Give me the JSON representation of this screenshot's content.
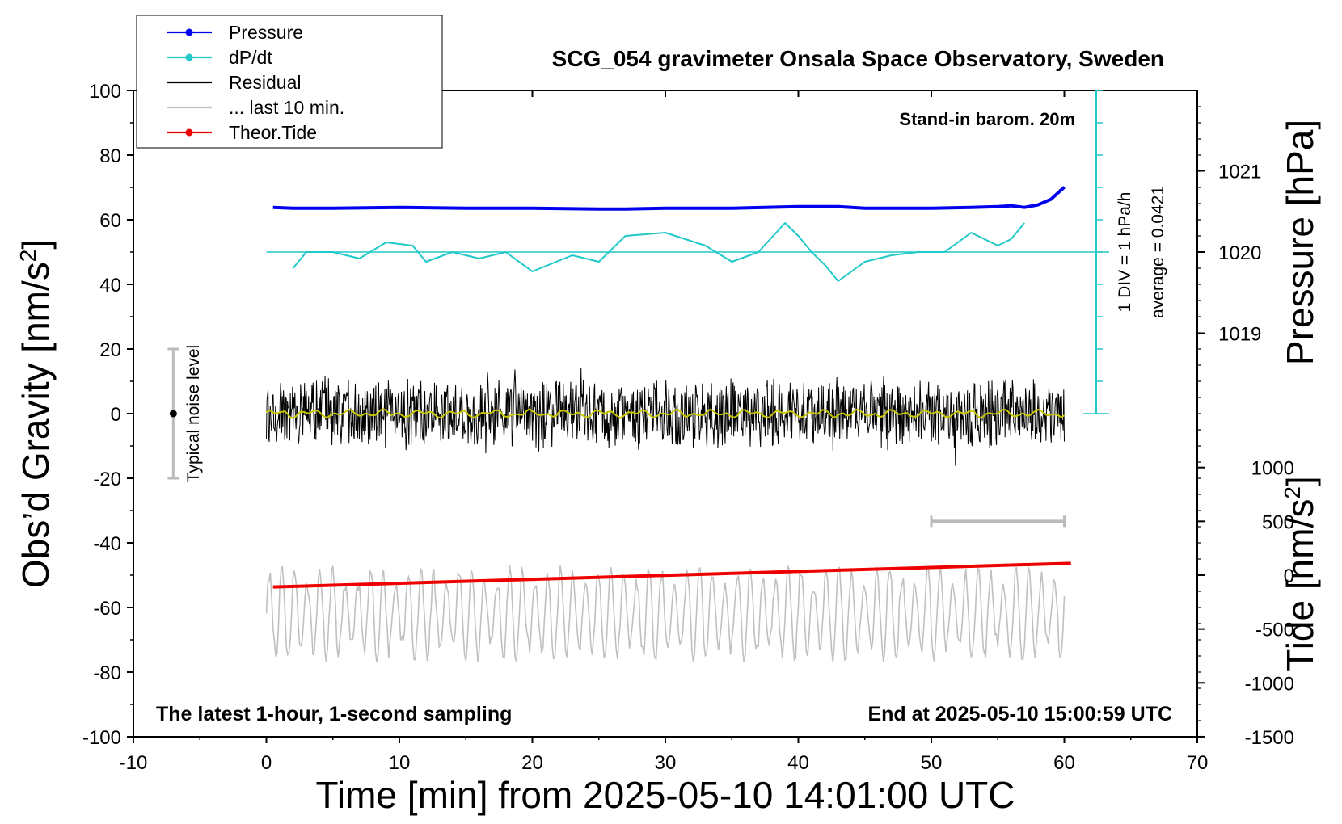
{
  "chart_data": {
    "type": "line",
    "title": "SCG_054 gravimeter Onsala Space Observatory, Sweden",
    "xlabel": "Time [min] from 2025-05-10 14:01:00 UTC",
    "xlim": [
      -10,
      70
    ],
    "xticks": [
      -10,
      0,
      10,
      20,
      30,
      40,
      50,
      60,
      70
    ],
    "ylabel_left": "Obs'd Gravity [nm/s²]",
    "ylim_left": [
      -100,
      100
    ],
    "yticks_left": [
      -100,
      -80,
      -60,
      -40,
      -20,
      0,
      20,
      40,
      60,
      80,
      100
    ],
    "ylabel_right_top": "Pressure [hPa]",
    "ylim_right_top": [
      1019,
      1021
    ],
    "yticks_right_top": [
      1019,
      1020,
      1021
    ],
    "ylabel_right_bottom": "Tide [nm/s²]",
    "ylim_right_bottom": [
      -1500,
      1000
    ],
    "yticks_right_bottom": [
      -1500,
      -1000,
      -500,
      0,
      500,
      1000
    ],
    "legend": {
      "position": "top-left",
      "entries": [
        {
          "label": "Pressure",
          "color": "#0000ee",
          "marker": "dot"
        },
        {
          "label": "dP/dt",
          "color": "#20c8c8",
          "marker": "dot"
        },
        {
          "label": "Residual",
          "color": "#000000",
          "marker": "none"
        },
        {
          "label": "... last 10 min.",
          "color": "#c0c0c0",
          "marker": "none"
        },
        {
          "label": "Theor.Tide",
          "color": "#ee0000",
          "marker": "dot"
        }
      ]
    },
    "annotations": {
      "barometer": "Stand-in barom. 20m",
      "div_label": "1 DIV = 1 hPa/h",
      "average_label": "average = 0.0421",
      "noise_label": "Typical noise level",
      "bottom_left": "The latest 1-hour, 1-second sampling",
      "bottom_right": "End at 2025-05-10 15:00:59 UTC"
    },
    "series": [
      {
        "name": "Pressure",
        "axis": "pressure",
        "color": "#0000ee",
        "x": [
          0.5,
          2,
          5,
          10,
          15,
          20,
          25,
          27,
          30,
          35,
          40,
          43,
          45,
          50,
          53,
          55,
          56,
          57,
          58,
          59,
          60
        ],
        "values": [
          1020.55,
          1020.54,
          1020.54,
          1020.55,
          1020.54,
          1020.54,
          1020.53,
          1020.53,
          1020.54,
          1020.54,
          1020.56,
          1020.56,
          1020.54,
          1020.54,
          1020.55,
          1020.56,
          1020.57,
          1020.55,
          1020.58,
          1020.65,
          1020.8
        ]
      },
      {
        "name": "dP/dt",
        "axis": "gravity",
        "color": "#20c8c8",
        "x": [
          2,
          3,
          5,
          7,
          9,
          11,
          12,
          14,
          16,
          18,
          20,
          23,
          25,
          27,
          30,
          33,
          35,
          37,
          39,
          40,
          41,
          42,
          43,
          45,
          47,
          49,
          51,
          53,
          55,
          56,
          57
        ],
        "values": [
          45,
          50,
          50,
          48,
          53,
          52,
          47,
          50,
          48,
          50,
          44,
          49,
          47,
          55,
          56,
          52,
          47,
          50,
          59,
          55,
          50,
          46,
          41,
          47,
          49,
          50,
          50,
          56,
          52,
          54,
          59
        ]
      },
      {
        "name": "Residual",
        "axis": "gravity",
        "color": "#000000",
        "x_range": [
          0,
          60
        ],
        "amplitude": 12,
        "mean": 0
      },
      {
        "name": "... last 10 min.",
        "axis": "gravity",
        "color": "#c0c0c0",
        "x_range": [
          0,
          60
        ],
        "mean": -62,
        "amplitude": 15
      },
      {
        "name": "Theor.Tide",
        "axis": "tide",
        "color": "#ee0000",
        "x": [
          0.5,
          60.5
        ],
        "values": [
          -110,
          110
        ]
      }
    ],
    "noise_bar": {
      "x": -7,
      "y_min": -20,
      "y_max": 20
    },
    "ten_min_bar": {
      "x_start": 50,
      "x_end": 60,
      "tide_value": 500
    }
  }
}
